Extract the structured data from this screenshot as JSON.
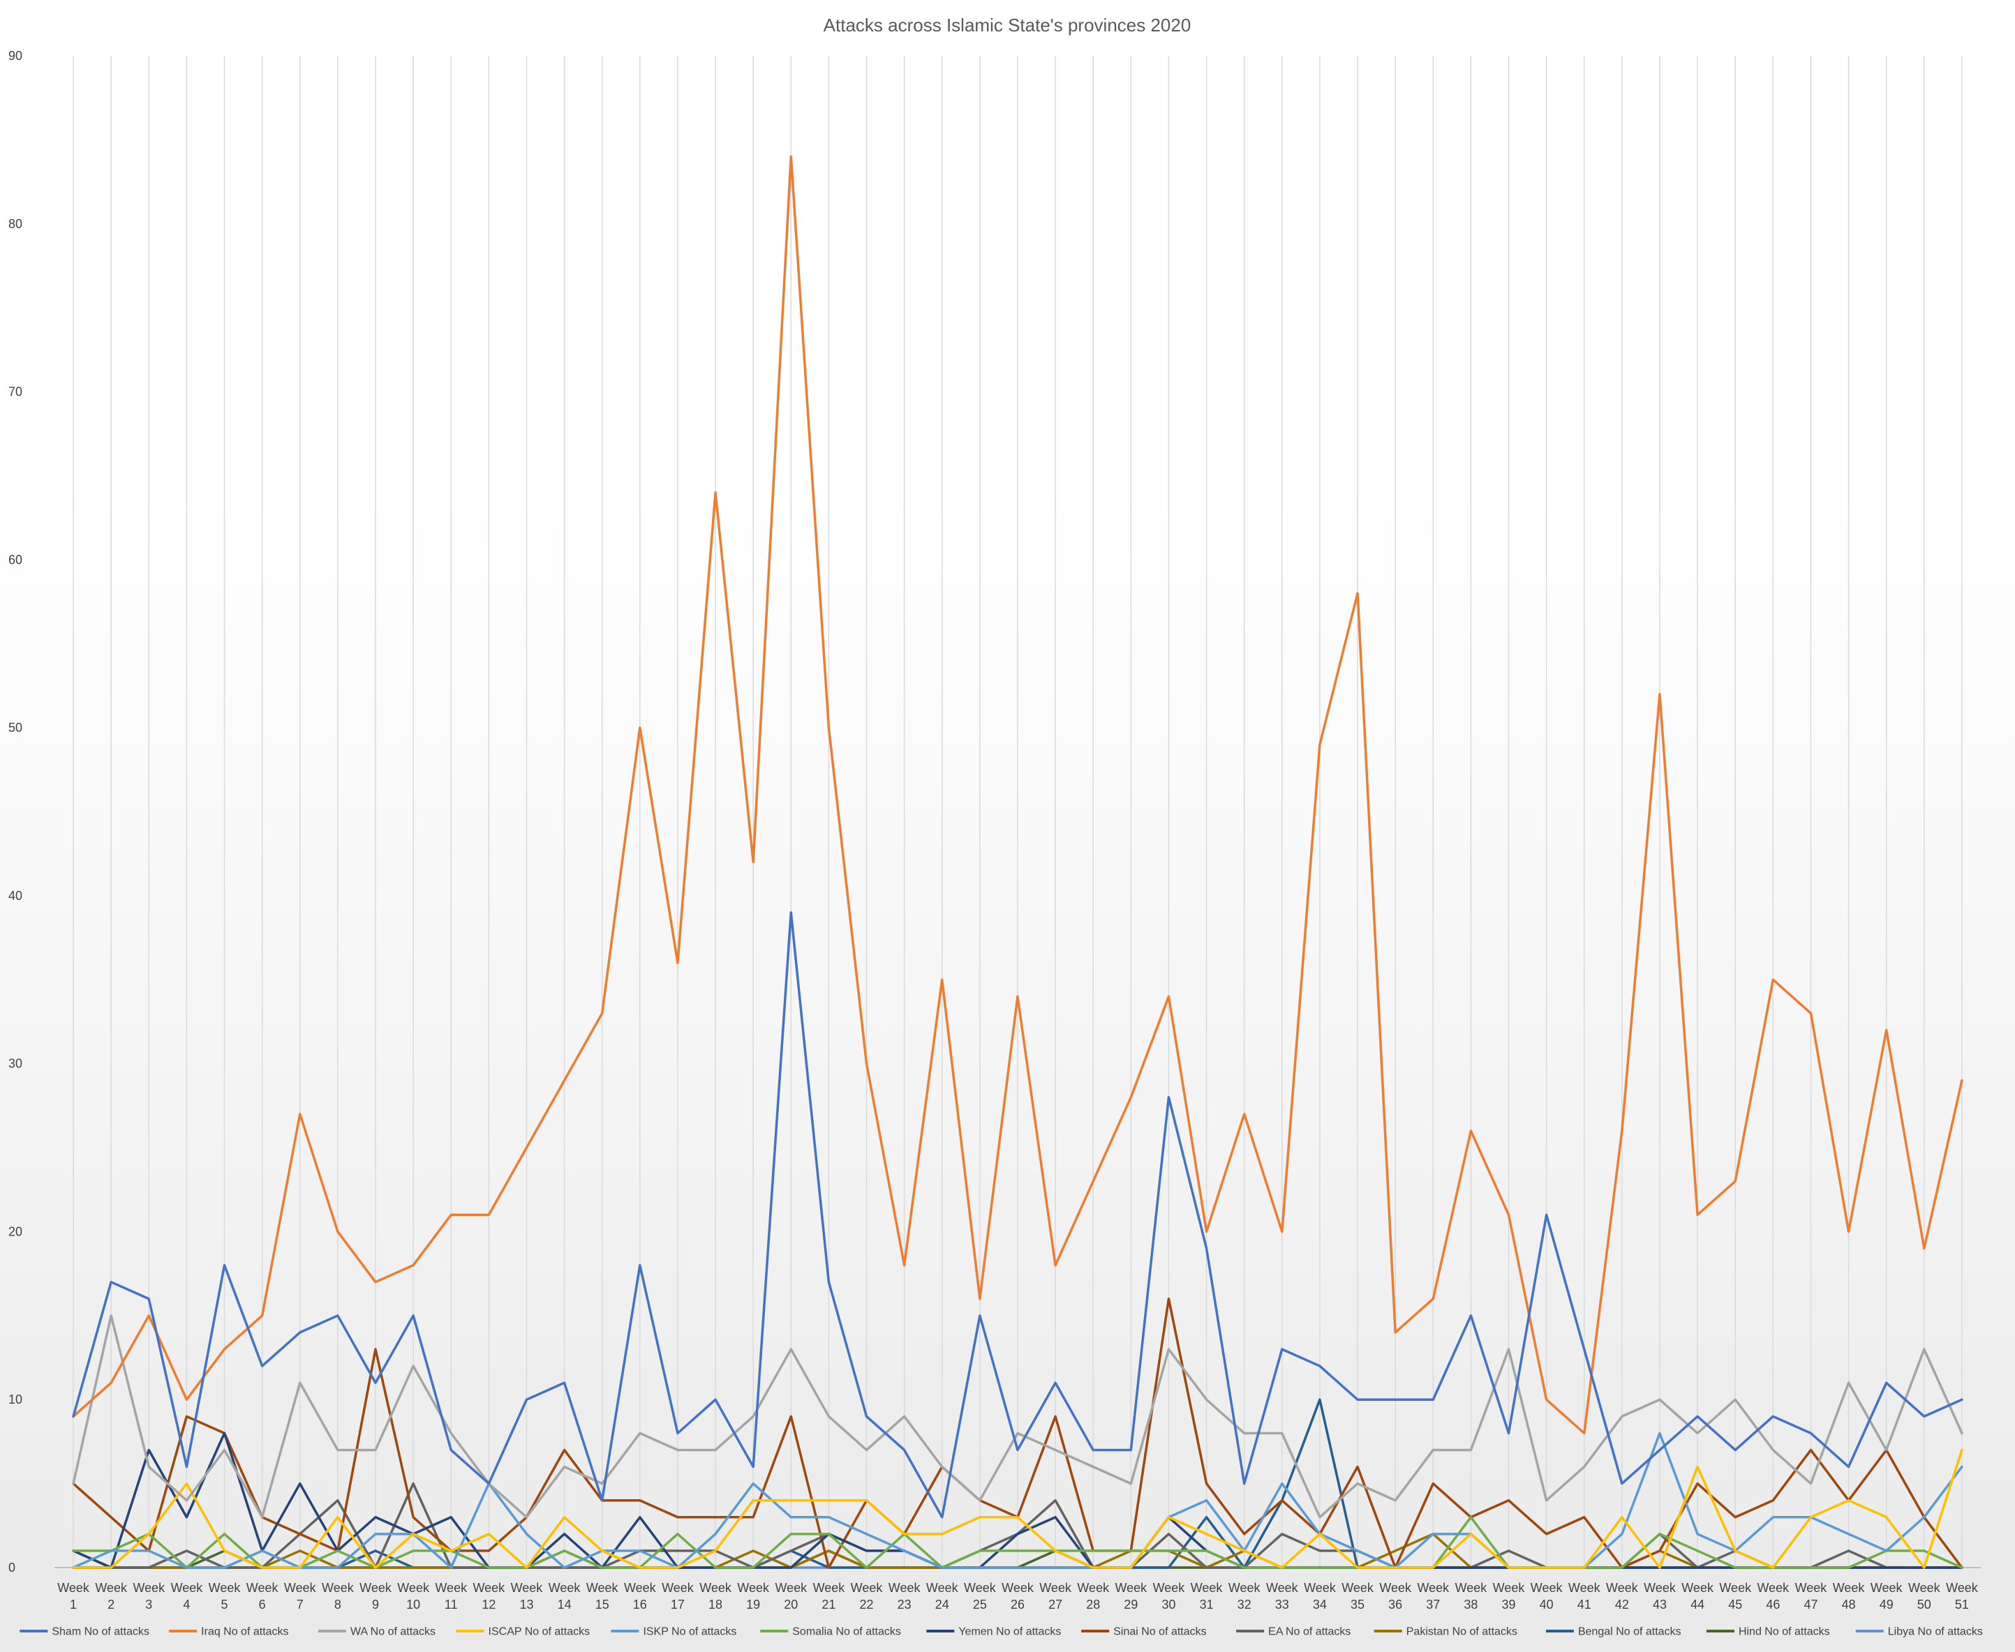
{
  "chart_data": {
    "type": "line",
    "title": "Attacks across Islamic State's provinces 2020",
    "xlabel": "",
    "ylabel": "",
    "ylim": [
      0,
      90
    ],
    "y_ticks": [
      0,
      10,
      20,
      30,
      40,
      50,
      60,
      70,
      80,
      90
    ],
    "grid": "vertical",
    "legend_position": "bottom",
    "categories": [
      "Week 1",
      "Week 2",
      "Week 3",
      "Week 4",
      "Week 5",
      "Week 6",
      "Week 7",
      "Week 8",
      "Week 9",
      "Week 10",
      "Week 11",
      "Week 12",
      "Week 13",
      "Week 14",
      "Week 15",
      "Week 16",
      "Week 17",
      "Week 18",
      "Week 19",
      "Week 20",
      "Week 21",
      "Week 22",
      "Week 23",
      "Week 24",
      "Week 25",
      "Week 26",
      "Week 27",
      "Week 28",
      "Week 29",
      "Week 30",
      "Week 31",
      "Week 32",
      "Week 33",
      "Week 34",
      "Week 35",
      "Week 36",
      "Week 37",
      "Week 38",
      "Week 39",
      "Week 40",
      "Week 41",
      "Week 42",
      "Week 43",
      "Week 44",
      "Week 45",
      "Week 46",
      "Week 47",
      "Week 48",
      "Week 49",
      "Week 50",
      "Week 51"
    ],
    "series": [
      {
        "name": "Sham No of attacks",
        "color": "#4472C4",
        "values": [
          9,
          17,
          16,
          6,
          18,
          12,
          14,
          15,
          11,
          15,
          7,
          5,
          10,
          11,
          4,
          18,
          8,
          10,
          6,
          39,
          17,
          9,
          7,
          3,
          15,
          7,
          11,
          7,
          7,
          28,
          19,
          5,
          13,
          12,
          10,
          10,
          10,
          15,
          8,
          21,
          13,
          5,
          7,
          9,
          7,
          9,
          8,
          6,
          11,
          9,
          10
        ]
      },
      {
        "name": "Iraq No of attacks",
        "color": "#ED7D31",
        "values": [
          9,
          11,
          15,
          10,
          13,
          15,
          27,
          20,
          17,
          18,
          21,
          21,
          25,
          29,
          33,
          50,
          36,
          64,
          42,
          84,
          50,
          30,
          18,
          35,
          16,
          34,
          18,
          23,
          28,
          34,
          20,
          27,
          20,
          49,
          58,
          14,
          16,
          26,
          21,
          10,
          8,
          26,
          52,
          21,
          23,
          35,
          33,
          20,
          32,
          19,
          29
        ]
      },
      {
        "name": "WA No of attacks",
        "color": "#A5A5A5",
        "values": [
          5,
          15,
          6,
          4,
          7,
          3,
          11,
          7,
          7,
          12,
          8,
          5,
          3,
          6,
          5,
          8,
          7,
          7,
          9,
          13,
          9,
          7,
          9,
          6,
          4,
          8,
          7,
          6,
          5,
          13,
          10,
          8,
          8,
          3,
          5,
          4,
          7,
          7,
          13,
          4,
          6,
          9,
          10,
          8,
          10,
          7,
          5,
          11,
          7,
          13,
          8
        ]
      },
      {
        "name": "ISCAP No of attacks",
        "color": "#FFC000",
        "values": [
          0,
          0,
          2,
          5,
          1,
          0,
          0,
          3,
          0,
          2,
          1,
          2,
          0,
          3,
          1,
          0,
          0,
          1,
          4,
          4,
          4,
          4,
          2,
          2,
          3,
          3,
          1,
          0,
          0,
          3,
          2,
          1,
          0,
          2,
          0,
          0,
          0,
          2,
          0,
          0,
          0,
          3,
          0,
          6,
          1,
          0,
          3,
          4,
          3,
          0,
          7
        ]
      },
      {
        "name": "ISKP No of attacks",
        "color": "#5B9BD5",
        "values": [
          0,
          1,
          1,
          0,
          0,
          1,
          0,
          0,
          2,
          2,
          0,
          5,
          2,
          0,
          1,
          1,
          0,
          2,
          5,
          3,
          3,
          2,
          1,
          0,
          0,
          0,
          0,
          0,
          0,
          3,
          4,
          1,
          5,
          2,
          1,
          0,
          2,
          2,
          0,
          0,
          0,
          2,
          8,
          2,
          1,
          3,
          3,
          2,
          1,
          3,
          6
        ]
      },
      {
        "name": "Somalia No of attacks",
        "color": "#70AD47",
        "values": [
          1,
          1,
          2,
          0,
          2,
          0,
          0,
          1,
          0,
          1,
          1,
          0,
          0,
          1,
          0,
          0,
          2,
          0,
          0,
          2,
          2,
          0,
          2,
          0,
          1,
          1,
          1,
          1,
          1,
          1,
          1,
          0,
          0,
          0,
          0,
          0,
          0,
          3,
          0,
          0,
          0,
          0,
          2,
          1,
          0,
          0,
          0,
          0,
          1,
          1,
          0
        ]
      },
      {
        "name": "Yemen No of attacks",
        "color": "#264478",
        "values": [
          1,
          0,
          7,
          3,
          8,
          1,
          5,
          1,
          3,
          2,
          3,
          0,
          0,
          2,
          0,
          3,
          0,
          0,
          0,
          0,
          2,
          1,
          1,
          0,
          0,
          2,
          3,
          0,
          0,
          3,
          1,
          0,
          0,
          0,
          0,
          0,
          0,
          0,
          0,
          0,
          0,
          0,
          0,
          0,
          0,
          0,
          0,
          0,
          0,
          0,
          0
        ]
      },
      {
        "name": "Sinai No of attacks",
        "color": "#9E480E",
        "values": [
          5,
          3,
          1,
          9,
          8,
          3,
          2,
          1,
          13,
          3,
          1,
          1,
          3,
          7,
          4,
          4,
          3,
          3,
          3,
          9,
          0,
          4,
          2,
          6,
          4,
          3,
          9,
          1,
          1,
          16,
          5,
          2,
          4,
          2,
          6,
          0,
          5,
          3,
          4,
          2,
          3,
          0,
          1,
          5,
          3,
          4,
          7,
          4,
          7,
          3,
          0
        ]
      },
      {
        "name": "EA No of attacks",
        "color": "#636363",
        "values": [
          0,
          0,
          0,
          1,
          0,
          0,
          2,
          4,
          0,
          5,
          0,
          0,
          0,
          0,
          0,
          1,
          1,
          1,
          0,
          1,
          2,
          1,
          1,
          0,
          1,
          2,
          4,
          0,
          0,
          2,
          0,
          0,
          2,
          1,
          1,
          0,
          0,
          0,
          1,
          0,
          0,
          0,
          2,
          0,
          1,
          0,
          0,
          1,
          0,
          0,
          0
        ]
      },
      {
        "name": "Pakistan No of attacks",
        "color": "#997300",
        "values": [
          0,
          0,
          0,
          0,
          0,
          0,
          1,
          0,
          0,
          0,
          0,
          0,
          0,
          0,
          0,
          0,
          0,
          0,
          1,
          0,
          1,
          0,
          0,
          0,
          0,
          0,
          0,
          0,
          1,
          1,
          0,
          1,
          0,
          0,
          0,
          1,
          2,
          0,
          0,
          0,
          0,
          0,
          1,
          0,
          0,
          0,
          0,
          0,
          0,
          0,
          0
        ]
      },
      {
        "name": "Bengal No of attacks",
        "color": "#255E91",
        "values": [
          0,
          0,
          0,
          0,
          0,
          0,
          0,
          0,
          1,
          0,
          0,
          0,
          0,
          0,
          0,
          0,
          0,
          0,
          0,
          1,
          0,
          0,
          0,
          0,
          0,
          0,
          0,
          0,
          0,
          0,
          3,
          0,
          4,
          10,
          0,
          0,
          0,
          0,
          0,
          0,
          0,
          0,
          0,
          0,
          0,
          0,
          0,
          0,
          0,
          0,
          0
        ]
      },
      {
        "name": "Hind No of attacks",
        "color": "#43682B",
        "values": [
          1,
          0,
          0,
          0,
          1,
          0,
          0,
          0,
          0,
          0,
          0,
          0,
          0,
          1,
          0,
          0,
          0,
          0,
          0,
          0,
          1,
          0,
          0,
          0,
          0,
          0,
          1,
          0,
          0,
          0,
          0,
          0,
          0,
          0,
          0,
          0,
          0,
          0,
          0,
          0,
          0,
          0,
          0,
          0,
          0,
          0,
          0,
          0,
          0,
          0,
          0
        ]
      },
      {
        "name": "Libya No of attacks",
        "color": "#698ED0",
        "values": [
          0,
          0,
          0,
          0,
          0,
          0,
          0,
          0,
          0,
          0,
          0,
          0,
          0,
          0,
          0,
          0,
          0,
          0,
          0,
          0,
          0,
          0,
          0,
          0,
          0,
          0,
          0,
          0,
          0,
          0,
          0,
          0,
          0,
          0,
          0,
          0,
          0,
          0,
          0,
          0,
          0,
          0,
          0,
          0,
          0,
          0,
          0,
          0,
          0,
          0,
          0
        ]
      }
    ]
  }
}
